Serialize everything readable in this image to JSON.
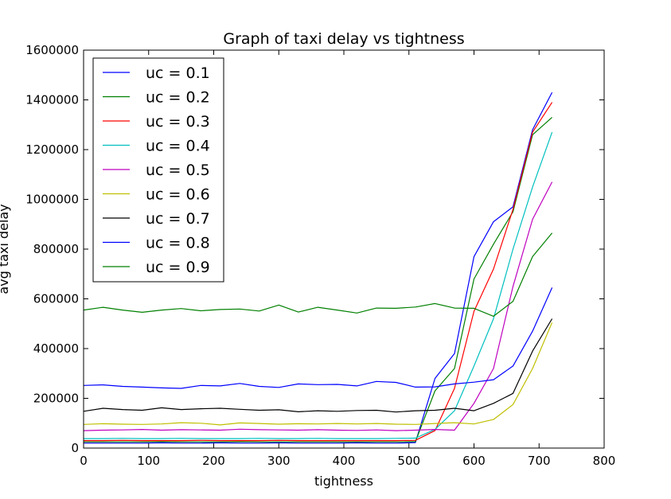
{
  "chart_data": {
    "type": "line",
    "title": "Graph of taxi delay vs tightness",
    "xlabel": "tightness",
    "ylabel": "avg taxi delay",
    "xlim": [
      0,
      800
    ],
    "ylim": [
      0,
      1600000
    ],
    "xticks": [
      "0",
      "100",
      "200",
      "300",
      "400",
      "500",
      "600",
      "700",
      "800"
    ],
    "yticks": [
      "0",
      "200000",
      "400000",
      "600000",
      "800000",
      "1000000",
      "1200000",
      "1400000",
      "1600000"
    ],
    "grid": false,
    "legend_position": "top-left",
    "x": [
      0,
      30,
      60,
      90,
      120,
      150,
      180,
      210,
      240,
      270,
      300,
      330,
      360,
      390,
      420,
      450,
      480,
      510,
      540,
      570,
      600,
      630,
      660,
      690,
      720
    ],
    "series": [
      {
        "name": "uc = 0.1",
        "color": "#0000ff",
        "values": [
          20000,
          20000,
          20000,
          20000,
          21000,
          20000,
          20000,
          21000,
          20000,
          20000,
          21000,
          20000,
          20000,
          20000,
          21000,
          20000,
          20000,
          22000,
          280000,
          380000,
          770000,
          910000,
          970000,
          1280000,
          1430000
        ]
      },
      {
        "name": "uc = 0.2",
        "color": "#008000",
        "values": [
          25000,
          25000,
          25000,
          25000,
          26000,
          25000,
          25000,
          25000,
          26000,
          25000,
          25000,
          25000,
          25000,
          25000,
          25000,
          25000,
          25000,
          26000,
          230000,
          320000,
          680000,
          820000,
          950000,
          1260000,
          1330000
        ]
      },
      {
        "name": "uc = 0.3",
        "color": "#ff0000",
        "values": [
          30000,
          30000,
          31000,
          30000,
          30000,
          30000,
          31000,
          30000,
          30000,
          30000,
          31000,
          30000,
          30000,
          30000,
          30000,
          30000,
          30000,
          31000,
          70000,
          240000,
          550000,
          720000,
          960000,
          1270000,
          1390000
        ]
      },
      {
        "name": "uc = 0.4",
        "color": "#00bfbf",
        "values": [
          38000,
          38000,
          39000,
          38000,
          38000,
          39000,
          38000,
          38000,
          38000,
          39000,
          38000,
          38000,
          39000,
          38000,
          38000,
          38000,
          39000,
          40000,
          75000,
          150000,
          330000,
          520000,
          800000,
          1050000,
          1270000
        ]
      },
      {
        "name": "uc = 0.5",
        "color": "#bf00bf",
        "values": [
          70000,
          72000,
          73000,
          75000,
          72000,
          74000,
          73000,
          72000,
          76000,
          74000,
          73000,
          72000,
          74000,
          72000,
          71000,
          73000,
          70000,
          72000,
          75000,
          72000,
          180000,
          320000,
          650000,
          920000,
          1070000
        ]
      },
      {
        "name": "uc = 0.6",
        "color": "#bfbf00",
        "values": [
          95000,
          98000,
          96000,
          95000,
          97000,
          102000,
          100000,
          93000,
          101000,
          99000,
          96000,
          98000,
          97000,
          99000,
          97000,
          99000,
          96000,
          95000,
          99000,
          102000,
          97000,
          115000,
          175000,
          320000,
          505000
        ]
      },
      {
        "name": "uc = 0.7",
        "color": "#000000",
        "values": [
          148000,
          160000,
          155000,
          152000,
          162000,
          155000,
          158000,
          160000,
          156000,
          152000,
          154000,
          146000,
          150000,
          148000,
          151000,
          152000,
          145000,
          150000,
          152000,
          160000,
          150000,
          180000,
          220000,
          390000,
          520000
        ]
      },
      {
        "name": "uc = 0.8",
        "color": "#0000ff",
        "values": [
          252000,
          254000,
          248000,
          245000,
          242000,
          240000,
          252000,
          250000,
          260000,
          248000,
          244000,
          258000,
          255000,
          256000,
          250000,
          268000,
          264000,
          245000,
          246000,
          258000,
          265000,
          275000,
          330000,
          470000,
          645000
        ]
      },
      {
        "name": "uc = 0.9",
        "color": "#008000",
        "values": [
          555000,
          566000,
          555000,
          546000,
          555000,
          561000,
          552000,
          557000,
          559000,
          551000,
          575000,
          547000,
          566000,
          555000,
          543000,
          563000,
          562000,
          567000,
          581000,
          563000,
          562000,
          530000,
          590000,
          770000,
          865000
        ]
      }
    ]
  }
}
